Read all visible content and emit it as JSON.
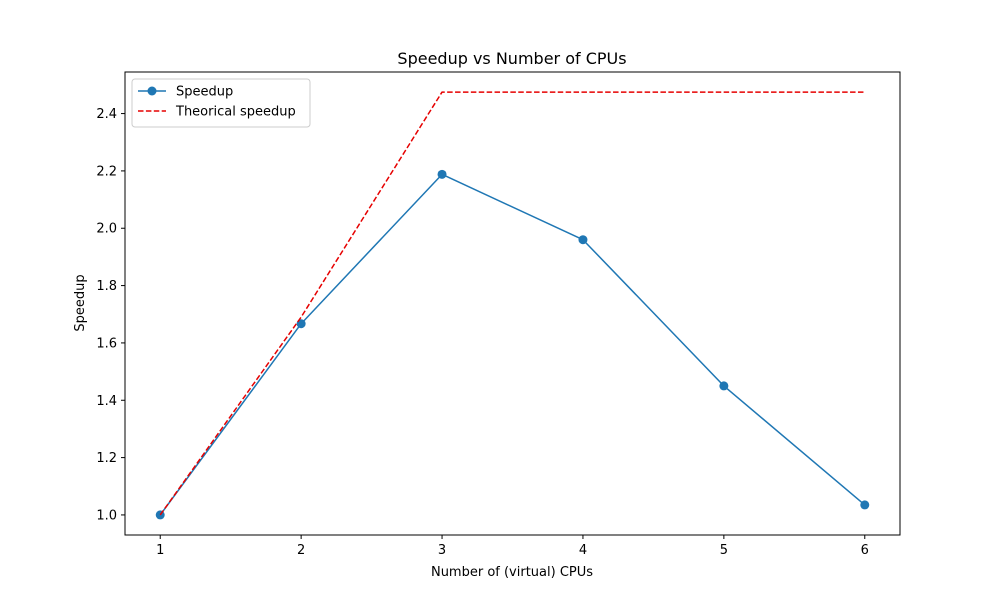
{
  "chart_data": {
    "type": "line",
    "title": "Speedup vs Number of CPUs",
    "xlabel": "Number of (virtual) CPUs",
    "ylabel": "Speedup",
    "x": [
      1,
      2,
      3,
      4,
      5,
      6
    ],
    "xticks": [
      "1",
      "2",
      "3",
      "4",
      "5",
      "6"
    ],
    "yticks": [
      "1.0",
      "1.2",
      "1.4",
      "1.6",
      "1.8",
      "2.0",
      "2.2",
      "2.4"
    ],
    "xlim": [
      0.75,
      6.25
    ],
    "ylim": [
      0.93,
      2.545
    ],
    "grid": false,
    "legend_position": "upper-left",
    "series": [
      {
        "name": "Speedup",
        "values": [
          1.0,
          1.667,
          2.188,
          1.96,
          1.45,
          1.035
        ],
        "color": "#1f77b4",
        "style": "solid",
        "marker": "circle"
      },
      {
        "name": "Theorical speedup",
        "values": [
          1.0,
          1.69,
          2.475,
          2.475,
          2.475,
          2.475
        ],
        "color": "#e60000",
        "style": "dashed",
        "marker": "none"
      }
    ]
  }
}
